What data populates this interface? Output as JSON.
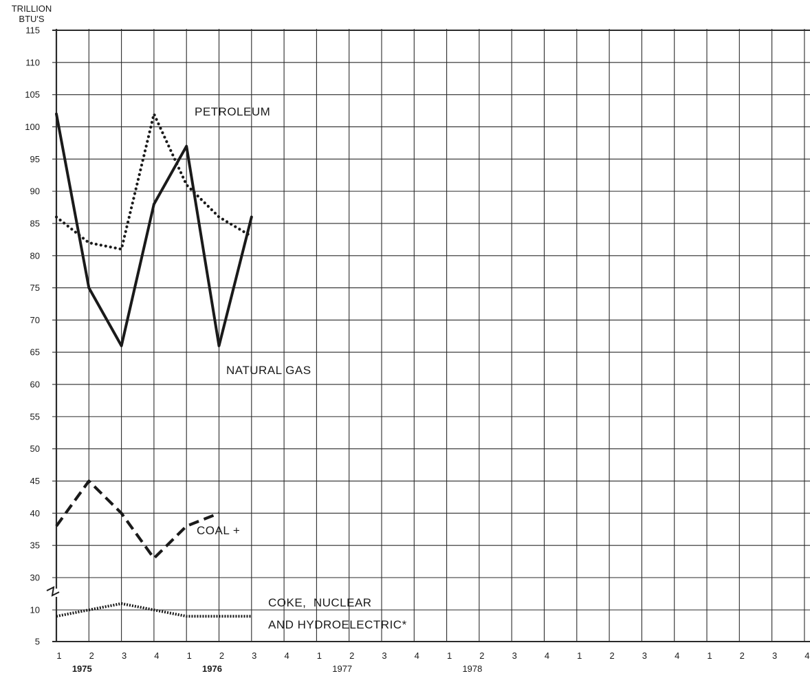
{
  "chart_data": {
    "type": "line",
    "ylabel": "TRILLION BTU'S",
    "ylabel_lines": [
      "TRILLION",
      "BTU'S"
    ],
    "ylim": [
      5,
      115
    ],
    "y_ticks": [
      5,
      10,
      30,
      35,
      40,
      45,
      50,
      55,
      60,
      65,
      70,
      75,
      80,
      85,
      90,
      95,
      100,
      105,
      110,
      115
    ],
    "y_axis_break": "between 10 and 30",
    "grid": true,
    "x_tick_labels": [
      "1",
      "2",
      "3",
      "4",
      "1",
      "2",
      "3",
      "4",
      "1",
      "2",
      "3",
      "4",
      "1",
      "2",
      "3",
      "4",
      "1",
      "2",
      "3",
      "4",
      "1",
      "2",
      "3",
      "4"
    ],
    "year_labels": [
      {
        "text": "1975",
        "quarter_index": 2,
        "bold": true
      },
      {
        "text": "1976",
        "quarter_index": 6,
        "bold": true
      },
      {
        "text": "1977",
        "quarter_index": 10,
        "bold": false
      },
      {
        "text": "1978",
        "quarter_index": 14,
        "bold": false
      }
    ],
    "series": [
      {
        "name": "PETROLEUM",
        "style": "dotted",
        "x": [
          1,
          2,
          3,
          4,
          5,
          6,
          7
        ],
        "values": [
          86,
          82,
          81,
          102,
          91,
          86,
          83
        ]
      },
      {
        "name": "NATURAL GAS",
        "style": "solid",
        "x": [
          1,
          2,
          3,
          4,
          5,
          6,
          7
        ],
        "values": [
          102,
          75,
          66,
          88,
          97,
          66,
          86
        ]
      },
      {
        "name": "COAL +",
        "style": "dashed",
        "x": [
          1,
          2,
          3,
          4,
          5,
          6
        ],
        "values": [
          38,
          45,
          40,
          33,
          38,
          40
        ]
      },
      {
        "name": "COKE, NUCLEAR AND HYDROELECTRIC*",
        "style": "fine-dotted",
        "x": [
          1,
          2,
          3,
          4,
          5,
          6,
          7
        ],
        "values": [
          9,
          10,
          11,
          10,
          9,
          9,
          9
        ]
      }
    ],
    "annotations": [
      {
        "text": "PETROLEUM",
        "series": "PETROLEUM"
      },
      {
        "text": "NATURAL GAS",
        "series": "NATURAL GAS"
      },
      {
        "text": "COAL +",
        "series": "COAL +"
      },
      {
        "text": "COKE,  NUCLEAR",
        "series": "COKE, NUCLEAR AND HYDROELECTRIC*"
      },
      {
        "text": "AND HYDROELECTRIC*",
        "series": "COKE, NUCLEAR AND HYDROELECTRIC*"
      }
    ],
    "colors": {
      "ink": "#1a1a1a",
      "grid": "#2a2a2a",
      "background": "#ffffff"
    }
  }
}
